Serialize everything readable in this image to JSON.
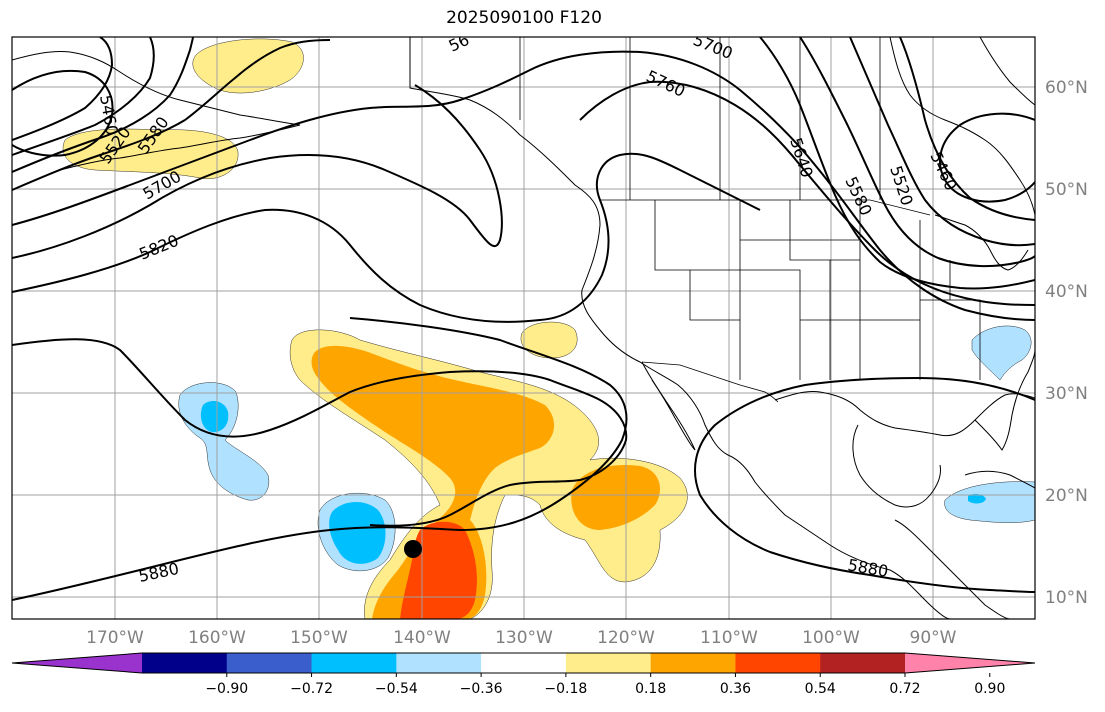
{
  "title": "2025090100 F120",
  "lat_labels": [
    "60°N",
    "50°N",
    "40°N",
    "30°N",
    "20°N",
    "10°N"
  ],
  "lon_labels": [
    "170°W",
    "160°W",
    "150°W",
    "140°W",
    "130°W",
    "120°W",
    "110°W",
    "100°W",
    "90°W"
  ],
  "contour_labels": [
    "5460",
    "5520",
    "5580",
    "5700",
    "5760",
    "5820",
    "5880",
    "5640",
    "5580",
    "5520",
    "5460",
    "5880",
    "5700",
    "56"
  ],
  "colorbar": {
    "ticks": [
      "−0.90",
      "−0.72",
      "−0.54",
      "−0.36",
      "−0.18",
      "0.18",
      "0.36",
      "0.54",
      "0.72",
      "0.90"
    ],
    "colors": [
      "#9a32cd",
      "#00008b",
      "#3a5fcd",
      "#00bfff",
      "#b0e2ff",
      "#ffffff",
      "#ffec8b",
      "#ffa500",
      "#ff4500",
      "#b22222",
      "#ff82ab"
    ]
  },
  "palette": {
    "light_yellow": "#ffec8b",
    "orange": "#ffa500",
    "red_orange": "#ff4500",
    "light_blue": "#b0e2ff",
    "deep_sky_blue": "#00bfff"
  }
}
